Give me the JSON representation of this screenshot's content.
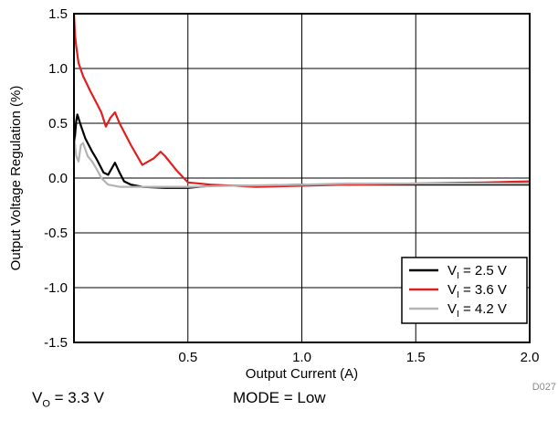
{
  "chart_data": {
    "type": "line",
    "xlabel": "Output Current (A)",
    "ylabel": "Output Voltage Regulation (%)",
    "xlim": [
      0,
      2.0
    ],
    "ylim": [
      -1.5,
      1.5
    ],
    "x_ticks": [
      "0.5",
      "1.0",
      "1.5",
      "2.0"
    ],
    "y_ticks": [
      "1.5",
      "1.0",
      "0.5",
      "0.0",
      "-0.5",
      "-1.0",
      "-1.5"
    ],
    "grid": true,
    "legend_position": "bottom-right",
    "figure_id": "D027",
    "series": [
      {
        "name": "VI = 2.5 V",
        "name_main": "V",
        "name_sub": "I",
        "name_rest": " = 2.5 V",
        "color": "#000000",
        "points": [
          [
            0.0,
            0.28
          ],
          [
            0.01,
            0.52
          ],
          [
            0.015,
            0.58
          ],
          [
            0.03,
            0.48
          ],
          [
            0.05,
            0.36
          ],
          [
            0.08,
            0.24
          ],
          [
            0.1,
            0.17
          ],
          [
            0.13,
            0.05
          ],
          [
            0.15,
            0.03
          ],
          [
            0.18,
            0.14
          ],
          [
            0.2,
            0.05
          ],
          [
            0.22,
            -0.03
          ],
          [
            0.25,
            -0.06
          ],
          [
            0.3,
            -0.08
          ],
          [
            0.4,
            -0.09
          ],
          [
            0.5,
            -0.09
          ],
          [
            0.6,
            -0.07
          ],
          [
            0.8,
            -0.07
          ],
          [
            1.0,
            -0.06
          ],
          [
            1.2,
            -0.06
          ],
          [
            1.5,
            -0.06
          ],
          [
            1.8,
            -0.06
          ],
          [
            2.0,
            -0.06
          ]
        ]
      },
      {
        "name": "VI = 3.6 V",
        "name_main": "V",
        "name_sub": "I",
        "name_rest": " = 3.6 V",
        "color": "#e02020",
        "points": [
          [
            0.0,
            1.5
          ],
          [
            0.005,
            1.3
          ],
          [
            0.01,
            1.2
          ],
          [
            0.02,
            1.05
          ],
          [
            0.04,
            0.93
          ],
          [
            0.07,
            0.8
          ],
          [
            0.1,
            0.68
          ],
          [
            0.12,
            0.6
          ],
          [
            0.14,
            0.47
          ],
          [
            0.16,
            0.55
          ],
          [
            0.18,
            0.6
          ],
          [
            0.2,
            0.5
          ],
          [
            0.25,
            0.3
          ],
          [
            0.3,
            0.12
          ],
          [
            0.35,
            0.18
          ],
          [
            0.38,
            0.24
          ],
          [
            0.4,
            0.2
          ],
          [
            0.45,
            0.07
          ],
          [
            0.5,
            -0.04
          ],
          [
            0.6,
            -0.06
          ],
          [
            0.8,
            -0.08
          ],
          [
            1.0,
            -0.07
          ],
          [
            1.2,
            -0.06
          ],
          [
            1.5,
            -0.05
          ],
          [
            1.8,
            -0.04
          ],
          [
            2.0,
            -0.03
          ]
        ]
      },
      {
        "name": "VI = 4.2 V",
        "name_main": "V",
        "name_sub": "I",
        "name_rest": " = 4.2 V",
        "color": "#b4b4b4",
        "points": [
          [
            0.0,
            0.38
          ],
          [
            0.01,
            0.2
          ],
          [
            0.02,
            0.15
          ],
          [
            0.03,
            0.3
          ],
          [
            0.04,
            0.32
          ],
          [
            0.06,
            0.2
          ],
          [
            0.08,
            0.15
          ],
          [
            0.1,
            0.08
          ],
          [
            0.12,
            0.0
          ],
          [
            0.15,
            -0.06
          ],
          [
            0.2,
            -0.08
          ],
          [
            0.3,
            -0.08
          ],
          [
            0.4,
            -0.08
          ],
          [
            0.5,
            -0.08
          ],
          [
            0.7,
            -0.07
          ],
          [
            1.0,
            -0.06
          ],
          [
            1.2,
            -0.05
          ],
          [
            1.5,
            -0.05
          ],
          [
            1.8,
            -0.05
          ],
          [
            2.0,
            -0.05
          ]
        ]
      }
    ]
  },
  "footer": {
    "vo_main": "V",
    "vo_sub": "O",
    "vo_rest": " = 3.3 V",
    "mode": "MODE = Low"
  }
}
